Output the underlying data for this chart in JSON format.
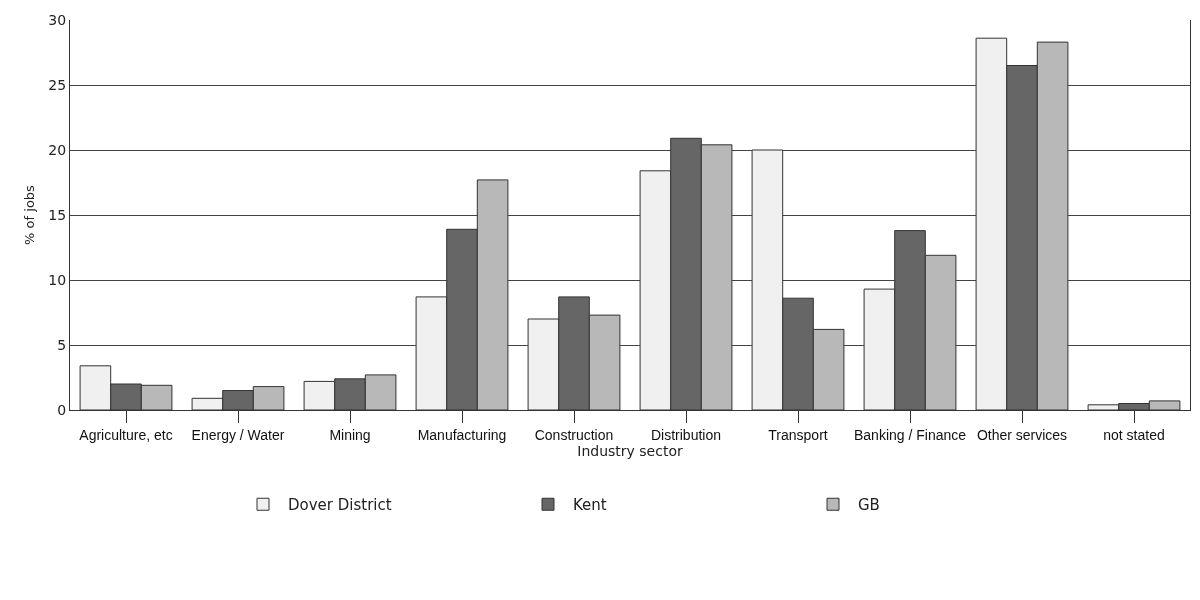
{
  "chart_data": {
    "type": "bar",
    "xlabel": "Industry sector",
    "ylabel": "% of jobs",
    "categories": [
      "Agriculture, etc",
      "Energy / Water",
      "Mining",
      "Manufacturing",
      "Construction",
      "Distribution",
      "Transport",
      "Banking / Finance",
      "Other services",
      "not stated"
    ],
    "series": [
      {
        "name": "Dover District",
        "color": "#f0f0f0",
        "values": [
          3.4,
          0.9,
          2.2,
          8.7,
          7.0,
          18.4,
          20.0,
          9.3,
          28.6,
          0.4
        ]
      },
      {
        "name": "Kent",
        "color": "#666666",
        "values": [
          2.0,
          1.5,
          2.4,
          13.9,
          8.7,
          20.9,
          8.6,
          13.8,
          26.5,
          0.5
        ]
      },
      {
        "name": "GB",
        "color": "#b8b8b8",
        "values": [
          1.9,
          1.8,
          2.7,
          17.7,
          7.3,
          20.4,
          6.2,
          11.9,
          28.3,
          0.7
        ]
      }
    ],
    "ylim": [
      0,
      30
    ],
    "yticks": [
      0,
      5,
      10,
      15,
      20,
      25,
      30
    ],
    "grid": "y",
    "legend": "bottom"
  }
}
